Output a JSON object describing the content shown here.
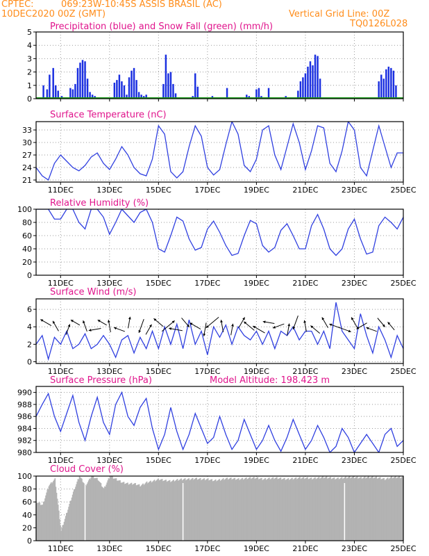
{
  "header": {
    "source": "CPTEC:",
    "location": "069:23W-10:45S  ASSIS BRASIL (AC)",
    "date": "10DEC2020 00Z (GMT)",
    "grid_note": "Vertical Grid Line: 00Z",
    "model": "TQ0126L028"
  },
  "x_ticks": [
    "11DEC",
    "13DEC",
    "15DEC",
    "17DEC",
    "19DEC",
    "21DEC",
    "23DEC",
    "25DEC"
  ],
  "chart_data": [
    {
      "type": "bar",
      "title": "Precipitation (blue) and Snow Fall (green) (mm/h)",
      "ylim": [
        0,
        5
      ],
      "yticks": [
        0,
        1,
        2,
        3,
        4,
        5
      ],
      "bar_color": "#1a2fe0",
      "snow_color": "#1a9a1a",
      "x_days": [
        0.3,
        0.45,
        0.55,
        0.7,
        0.8,
        0.9,
        1.05,
        1.4,
        1.5,
        1.6,
        1.7,
        1.8,
        1.9,
        2.0,
        2.1,
        2.2,
        2.3,
        2.4,
        3.2,
        3.3,
        3.4,
        3.5,
        3.6,
        3.7,
        3.8,
        3.9,
        4.0,
        4.1,
        4.2,
        4.3,
        4.4,
        4.5,
        5.2,
        5.3,
        5.4,
        5.5,
        5.6,
        5.7,
        6.4,
        6.5,
        6.6,
        7.2,
        7.8,
        8.6,
        8.7,
        9.0,
        9.1,
        9.2,
        9.5,
        10.2,
        10.7,
        10.8,
        10.9,
        11.0,
        11.1,
        11.2,
        11.3,
        11.4,
        11.5,
        11.6,
        14.0,
        14.1,
        14.2,
        14.3,
        14.4,
        14.5,
        14.6,
        14.7
      ],
      "values": [
        1.0,
        0.7,
        1.8,
        2.3,
        1.0,
        0.6,
        0.2,
        0.8,
        0.7,
        1.1,
        2.3,
        2.7,
        2.9,
        2.8,
        1.5,
        0.5,
        0.3,
        0.2,
        1.2,
        1.4,
        1.8,
        1.3,
        1.0,
        0.3,
        1.6,
        2.1,
        2.3,
        1.4,
        0.5,
        0.3,
        0.2,
        0.3,
        1.1,
        3.3,
        1.9,
        2.0,
        1.1,
        0.4,
        0.2,
        1.9,
        0.9,
        0.2,
        0.8,
        0.3,
        0.2,
        0.7,
        0.8,
        0.2,
        0.8,
        0.2,
        0.6,
        1.3,
        1.6,
        1.9,
        2.4,
        2.8,
        2.5,
        3.3,
        3.2,
        1.5,
        1.3,
        1.8,
        1.5,
        2.2,
        2.4,
        2.3,
        2.1,
        1.0
      ]
    },
    {
      "type": "line",
      "title": "Surface Temperature (nC)",
      "ylim": [
        20.5,
        35
      ],
      "yticks": [
        21,
        24,
        27,
        30,
        33
      ],
      "color": "#2f3fe0",
      "x": [
        0,
        0.25,
        0.5,
        0.75,
        1.0,
        1.25,
        1.5,
        1.75,
        2.0,
        2.25,
        2.5,
        2.75,
        3.0,
        3.25,
        3.5,
        3.75,
        4.0,
        4.25,
        4.5,
        4.75,
        5.0,
        5.25,
        5.5,
        5.75,
        6.0,
        6.25,
        6.5,
        6.75,
        7.0,
        7.25,
        7.5,
        7.75,
        8.0,
        8.25,
        8.5,
        8.75,
        9.0,
        9.25,
        9.5,
        9.75,
        10.0,
        10.25,
        10.5,
        10.75,
        11.0,
        11.25,
        11.5,
        11.75,
        12.0,
        12.25,
        12.5,
        12.75,
        13.0,
        13.25,
        13.5,
        13.75,
        14.0,
        14.25,
        14.5,
        14.75,
        15.0
      ],
      "values": [
        24.0,
        22.0,
        21.0,
        25.0,
        27.0,
        25.5,
        24.0,
        23.2,
        24.5,
        26.5,
        27.5,
        25.0,
        23.5,
        26.0,
        29.0,
        27.0,
        24.0,
        22.5,
        22.0,
        26.0,
        34.0,
        32.0,
        23.0,
        21.5,
        23.0,
        29.0,
        34.0,
        31.5,
        24.0,
        22.2,
        23.5,
        29.5,
        35.0,
        32.0,
        24.5,
        23.0,
        26.0,
        33.0,
        34.0,
        27.0,
        23.5,
        29.0,
        34.5,
        30.0,
        23.5,
        28.0,
        34.0,
        33.5,
        25.0,
        23.0,
        28.0,
        35.0,
        33.0,
        24.0,
        22.0,
        28.0,
        34.0,
        29.0,
        24.0,
        27.5,
        27.5
      ]
    },
    {
      "type": "line",
      "title": "Relative Humidity (%)",
      "ylim": [
        0,
        100
      ],
      "yticks": [
        0,
        20,
        40,
        60,
        80,
        100
      ],
      "color": "#2f3fe0",
      "x": [
        0,
        0.25,
        0.5,
        0.75,
        1.0,
        1.25,
        1.5,
        1.75,
        2.0,
        2.25,
        2.5,
        2.75,
        3.0,
        3.25,
        3.5,
        3.75,
        4.0,
        4.25,
        4.5,
        4.75,
        5.0,
        5.25,
        5.5,
        5.75,
        6.0,
        6.25,
        6.5,
        6.75,
        7.0,
        7.25,
        7.5,
        7.75,
        8.0,
        8.25,
        8.5,
        8.75,
        9.0,
        9.25,
        9.5,
        9.75,
        10.0,
        10.25,
        10.5,
        10.75,
        11.0,
        11.25,
        11.5,
        11.75,
        12.0,
        12.25,
        12.5,
        12.75,
        13.0,
        13.25,
        13.5,
        13.75,
        14.0,
        14.25,
        14.5,
        14.75,
        15.0
      ],
      "values": [
        100,
        100,
        100,
        85,
        85,
        100,
        100,
        80,
        70,
        100,
        100,
        88,
        62,
        80,
        100,
        90,
        80,
        95,
        100,
        80,
        40,
        35,
        60,
        88,
        82,
        55,
        38,
        42,
        70,
        82,
        65,
        45,
        30,
        33,
        60,
        83,
        78,
        45,
        35,
        42,
        68,
        78,
        60,
        40,
        40,
        75,
        92,
        70,
        40,
        30,
        40,
        70,
        85,
        55,
        32,
        35,
        75,
        88,
        80,
        70,
        88
      ]
    },
    {
      "type": "line",
      "title": "Surface Wind (m/s)",
      "ylim": [
        -0.2,
        7.2
      ],
      "yticks": [
        0,
        2,
        4,
        6
      ],
      "color": "#2f3fe0",
      "x": [
        0,
        0.25,
        0.5,
        0.75,
        1.0,
        1.25,
        1.5,
        1.75,
        2.0,
        2.25,
        2.5,
        2.75,
        3.0,
        3.25,
        3.5,
        3.75,
        4.0,
        4.25,
        4.5,
        4.75,
        5.0,
        5.25,
        5.5,
        5.75,
        6.0,
        6.25,
        6.5,
        6.75,
        7.0,
        7.25,
        7.5,
        7.75,
        8.0,
        8.25,
        8.5,
        8.75,
        9.0,
        9.25,
        9.5,
        9.75,
        10.0,
        10.25,
        10.5,
        10.75,
        11.0,
        11.25,
        11.5,
        11.75,
        12.0,
        12.25,
        12.5,
        12.75,
        13.0,
        13.25,
        13.5,
        13.75,
        14.0,
        14.25,
        14.5,
        14.75,
        15.0
      ],
      "values": [
        2.0,
        3.0,
        0.3,
        2.8,
        2.0,
        3.5,
        1.5,
        2.0,
        3.2,
        1.5,
        2.0,
        3.0,
        2.0,
        0.5,
        2.5,
        3.0,
        1.0,
        2.8,
        1.5,
        3.5,
        1.5,
        4.0,
        2.0,
        4.3,
        1.5,
        4.8,
        2.0,
        3.5,
        0.8,
        4.0,
        2.8,
        4.2,
        2.0,
        4.0,
        3.0,
        2.5,
        3.5,
        2.0,
        3.5,
        1.5,
        3.5,
        3.0,
        4.0,
        2.5,
        3.5,
        3.5,
        2.0,
        3.5,
        1.5,
        6.8,
        3.5,
        2.5,
        1.5,
        5.5,
        3.0,
        1.0,
        4.0,
        2.5,
        0.5,
        3.0,
        1.5
      ],
      "arrows_x_days": [
        0.4,
        0.8,
        1.3,
        1.6,
        2.0,
        2.4,
        2.7,
        3.0,
        3.4,
        3.8,
        4.3,
        4.6,
        5.0,
        5.4,
        5.7,
        6.1,
        6.5,
        6.9,
        7.2,
        7.6,
        8.0,
        8.4,
        8.7,
        9.1,
        9.5,
        9.9,
        10.3,
        10.6,
        11.0,
        11.4,
        11.8,
        12.2,
        12.6,
        13.0,
        13.3,
        13.7,
        14.1,
        14.5
      ],
      "arrows_dir_deg": [
        300,
        330,
        20,
        300,
        340,
        260,
        300,
        350,
        290,
        10,
        200,
        30,
        310,
        50,
        280,
        140,
        300,
        190,
        230,
        350,
        10,
        30,
        310,
        300,
        280,
        250,
        10,
        200,
        350,
        310,
        330,
        290,
        110,
        330,
        240,
        290,
        140,
        320
      ],
      "arrows_speed": [
        1.5,
        1.3,
        1.2,
        1.0,
        1.3,
        1.5,
        1.0,
        1.5,
        1.3,
        1.3,
        2.0,
        1.3,
        1.5,
        2.5,
        1.8,
        1.4,
        1.5,
        1.8,
        2.5,
        1.5,
        1.3,
        1.4,
        1.8,
        1.8,
        1.3,
        1.4,
        1.4,
        2.0,
        1.3,
        1.4,
        1.4,
        1.3,
        1.8,
        1.4,
        1.4,
        1.2,
        1.3,
        1.0
      ]
    },
    {
      "type": "line",
      "title": "Surface Pressure (hPa)",
      "annotation": "Model Altitude: 198.423 m",
      "ylim": [
        980,
        991
      ],
      "yticks": [
        980,
        982,
        984,
        986,
        988,
        990
      ],
      "color": "#2f3fe0",
      "x": [
        0,
        0.25,
        0.5,
        0.75,
        1.0,
        1.25,
        1.5,
        1.75,
        2.0,
        2.25,
        2.5,
        2.75,
        3.0,
        3.25,
        3.5,
        3.75,
        4.0,
        4.25,
        4.5,
        4.75,
        5.0,
        5.25,
        5.5,
        5.75,
        6.0,
        6.25,
        6.5,
        6.75,
        7.0,
        7.25,
        7.5,
        7.75,
        8.0,
        8.25,
        8.5,
        8.75,
        9.0,
        9.25,
        9.5,
        9.75,
        10.0,
        10.25,
        10.5,
        10.75,
        11.0,
        11.25,
        11.5,
        11.75,
        12.0,
        12.25,
        12.5,
        12.75,
        13.0,
        13.25,
        13.5,
        13.75,
        14.0,
        14.25,
        14.5,
        14.75,
        15.0
      ],
      "values": [
        986.0,
        988.0,
        989.8,
        986.0,
        983.5,
        986.5,
        989.5,
        985.0,
        982.0,
        986.0,
        989.2,
        985.0,
        983.0,
        988.0,
        990.0,
        986.0,
        984.5,
        987.5,
        989.0,
        984.0,
        980.5,
        983.0,
        987.5,
        983.5,
        980.5,
        983.0,
        986.5,
        984.0,
        981.5,
        982.5,
        986.0,
        983.0,
        980.5,
        982.0,
        985.5,
        983.0,
        980.5,
        982.0,
        984.5,
        982.0,
        980.2,
        982.5,
        985.5,
        983.0,
        980.5,
        982.0,
        984.5,
        982.5,
        980.0,
        981.0,
        984.0,
        982.5,
        980.0,
        981.5,
        983.0,
        981.5,
        980.0,
        983.0,
        984.0,
        981.0,
        982.0
      ]
    },
    {
      "type": "area",
      "title": "Cloud Cover (%)",
      "ylim": [
        0,
        100
      ],
      "yticks": [
        0,
        20,
        40,
        60,
        80,
        100
      ],
      "color": "#b3b3b3",
      "x": [
        0,
        0.25,
        0.5,
        0.75,
        1.0,
        1.25,
        1.5,
        1.75,
        2.0,
        2.25,
        2.5,
        2.75,
        3.0,
        3.25,
        3.5,
        3.75,
        4.0,
        4.25,
        4.5,
        4.75,
        5.0,
        5.25,
        5.5,
        5.75,
        6.0,
        6.25,
        6.5,
        6.75,
        7.0,
        7.25,
        7.5,
        7.75,
        8.0,
        8.25,
        8.5,
        8.75,
        9.0,
        9.25,
        9.5,
        9.75,
        10.0,
        10.25,
        10.5,
        10.75,
        11.0,
        11.25,
        11.5,
        11.75,
        12.0,
        12.25,
        12.5,
        12.75,
        13.0,
        13.25,
        13.5,
        13.75,
        14.0,
        14.25,
        14.5,
        14.75,
        15.0
      ],
      "values": [
        60,
        55,
        85,
        95,
        15,
        45,
        75,
        100,
        85,
        100,
        95,
        80,
        100,
        95,
        90,
        88,
        88,
        85,
        90,
        92,
        95,
        93,
        92,
        94,
        95,
        95,
        96,
        95,
        95,
        93,
        94,
        96,
        96,
        95,
        96,
        97,
        97,
        95,
        96,
        97,
        96,
        95,
        96,
        97,
        97,
        96,
        97,
        98,
        97,
        96,
        97,
        98,
        98,
        97,
        98,
        98,
        97,
        95,
        98,
        98,
        98
      ]
    }
  ]
}
